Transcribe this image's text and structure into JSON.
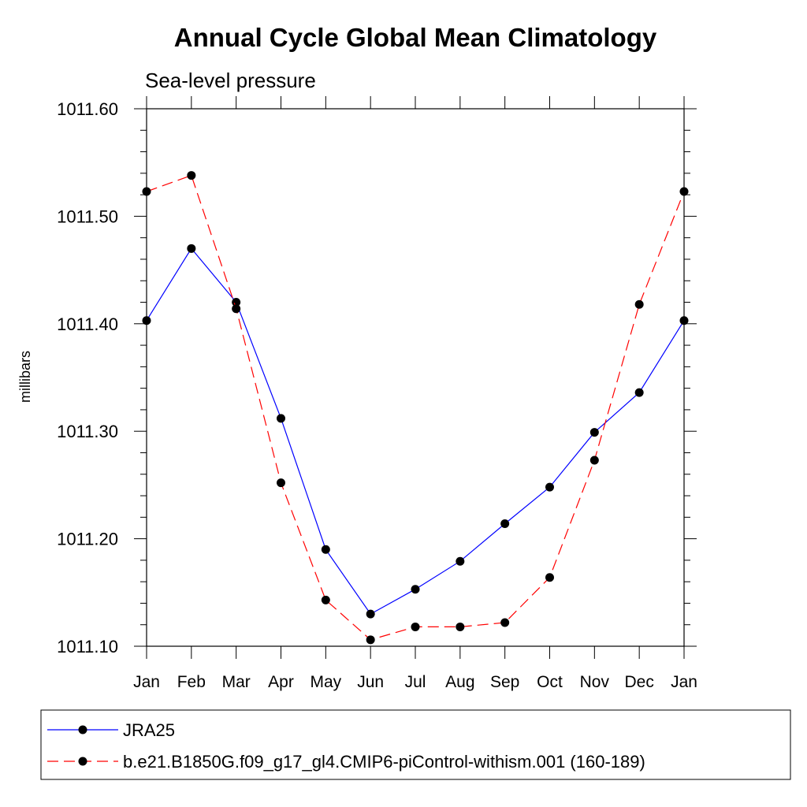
{
  "chart_data": {
    "type": "line",
    "title": "Annual Cycle Global Mean Climatology",
    "subtitle": "Sea-level pressure",
    "ylabel": "millibars",
    "xlabel": "",
    "categories": [
      "Jan",
      "Feb",
      "Mar",
      "Apr",
      "May",
      "Jun",
      "Jul",
      "Aug",
      "Sep",
      "Oct",
      "Nov",
      "Dec",
      "Jan"
    ],
    "ylim": [
      1011.1,
      1011.6
    ],
    "yticks": [
      "1011.10",
      "1011.20",
      "1011.30",
      "1011.40",
      "1011.50",
      "1011.60"
    ],
    "grid": false,
    "legend_position": "bottom",
    "series": [
      {
        "name": "JRA25",
        "color": "#0000ff",
        "line_style": "solid",
        "marker": "filled-circle",
        "values": [
          1011.403,
          1011.47,
          1011.42,
          1011.312,
          1011.19,
          1011.13,
          1011.153,
          1011.179,
          1011.214,
          1011.248,
          1011.299,
          1011.336,
          1011.403
        ]
      },
      {
        "name": "b.e21.B1850G.f09_g17_gl4.CMIP6-piControl-withism.001 (160-189)",
        "color": "#ff0000",
        "line_style": "dashed",
        "marker": "filled-circle",
        "values": [
          1011.523,
          1011.538,
          1011.414,
          1011.252,
          1011.143,
          1011.106,
          1011.118,
          1011.118,
          1011.122,
          1011.164,
          1011.273,
          1011.418,
          1011.523
        ]
      }
    ]
  }
}
